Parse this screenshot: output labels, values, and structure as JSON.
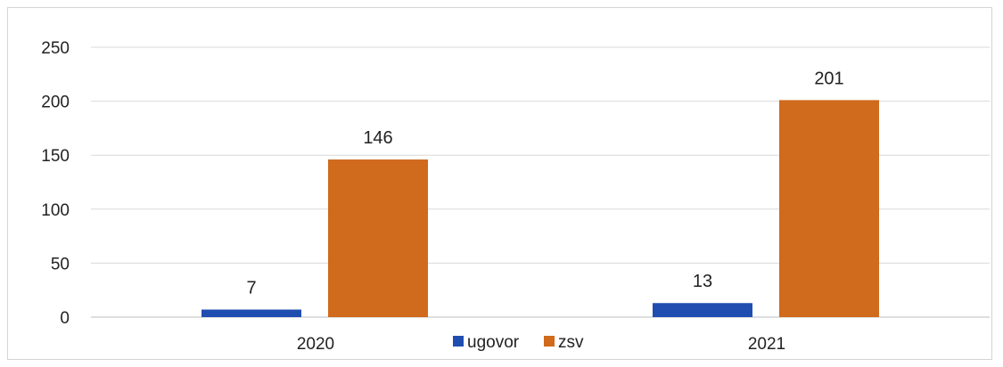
{
  "chart_data": {
    "type": "bar",
    "categories": [
      "2020",
      "2021"
    ],
    "series": [
      {
        "name": "ugovor",
        "values": [
          7,
          13
        ],
        "color": "#1f4eb0"
      },
      {
        "name": "zsv",
        "values": [
          146,
          201
        ],
        "color": "#d06a1c"
      }
    ],
    "ylim": [
      0,
      250
    ],
    "yticks": [
      0,
      50,
      100,
      150,
      200,
      250
    ],
    "grid": true,
    "legend_position": "bottom",
    "show_data_labels": true,
    "title": "",
    "xlabel": "",
    "ylabel": ""
  }
}
